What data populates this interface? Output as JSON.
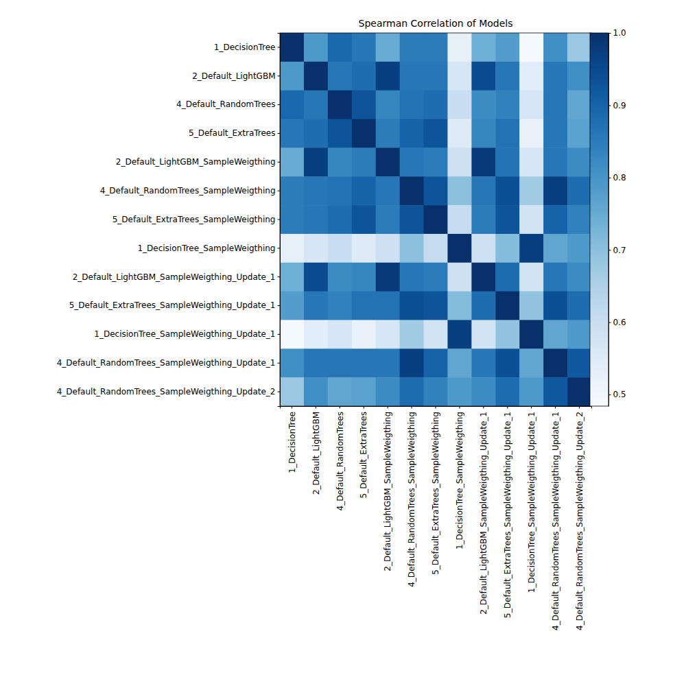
{
  "chart_data": {
    "type": "heatmap",
    "title": "Spearman Correlation of Models",
    "categories": [
      "1_DecisionTree",
      "2_Default_LightGBM",
      "4_Default_RandomTrees",
      "5_Default_ExtraTrees",
      "2_Default_LightGBM_SampleWeigthing",
      "4_Default_RandomTrees_SampleWeigthing",
      "5_Default_ExtraTrees_SampleWeigthing",
      "1_DecisionTree_SampleWeigthing",
      "2_Default_LightGBM_SampleWeigthing_Update_1",
      "5_Default_ExtraTrees_SampleWeigthing_Update_1",
      "1_DecisionTree_SampleWeigthing_Update_1",
      "4_Default_RandomTrees_SampleWeigthing_Update_1",
      "4_Default_RandomTrees_SampleWeigthing_Update_2"
    ],
    "values": [
      [
        1,
        0.79,
        0.89,
        0.86,
        0.75,
        0.85,
        0.85,
        0.53,
        0.74,
        0.78,
        0.49,
        0.81,
        0.68
      ],
      [
        0.79,
        1,
        0.86,
        0.88,
        0.97,
        0.86,
        0.86,
        0.57,
        0.95,
        0.86,
        0.54,
        0.86,
        0.81
      ],
      [
        0.89,
        0.86,
        1,
        0.93,
        0.83,
        0.87,
        0.88,
        0.6,
        0.82,
        0.84,
        0.57,
        0.86,
        0.76
      ],
      [
        0.86,
        0.88,
        0.93,
        1,
        0.85,
        0.9,
        0.93,
        0.55,
        0.83,
        0.87,
        0.52,
        0.86,
        0.77
      ],
      [
        0.75,
        0.97,
        0.83,
        0.85,
        1,
        0.86,
        0.85,
        0.59,
        0.98,
        0.87,
        0.57,
        0.86,
        0.82
      ],
      [
        0.85,
        0.86,
        0.87,
        0.9,
        0.86,
        1,
        0.93,
        0.7,
        0.86,
        0.94,
        0.67,
        0.97,
        0.88
      ],
      [
        0.85,
        0.86,
        0.88,
        0.93,
        0.85,
        0.93,
        1,
        0.61,
        0.85,
        0.93,
        0.58,
        0.9,
        0.84
      ],
      [
        0.53,
        0.57,
        0.6,
        0.55,
        0.59,
        0.7,
        0.61,
        1,
        0.59,
        0.71,
        0.97,
        0.76,
        0.79
      ],
      [
        0.74,
        0.95,
        0.82,
        0.83,
        0.98,
        0.86,
        0.85,
        0.59,
        1,
        0.88,
        0.58,
        0.86,
        0.82
      ],
      [
        0.78,
        0.86,
        0.84,
        0.87,
        0.87,
        0.94,
        0.93,
        0.71,
        0.88,
        1,
        0.69,
        0.94,
        0.88
      ],
      [
        0.49,
        0.54,
        0.57,
        0.52,
        0.57,
        0.67,
        0.58,
        0.97,
        0.58,
        0.69,
        1,
        0.76,
        0.79
      ],
      [
        0.81,
        0.86,
        0.86,
        0.86,
        0.86,
        0.97,
        0.9,
        0.76,
        0.86,
        0.94,
        0.76,
        1,
        0.92
      ],
      [
        0.68,
        0.81,
        0.76,
        0.77,
        0.82,
        0.88,
        0.84,
        0.79,
        0.82,
        0.88,
        0.79,
        0.92,
        1
      ]
    ],
    "color": "Blues",
    "color_range": [
      0.484,
      1.0
    ],
    "color_ticks": [
      0.5,
      0.6,
      0.7,
      0.8,
      0.9,
      {
        "value": 1.0,
        "label": "1.0"
      }
    ]
  }
}
